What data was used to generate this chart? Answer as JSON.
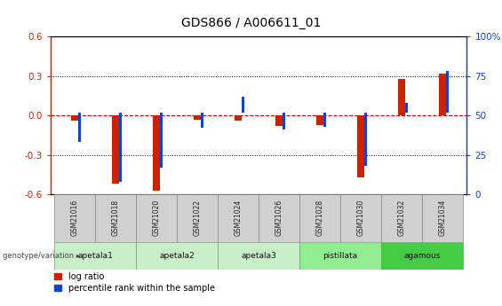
{
  "title": "GDS866 / A006611_01",
  "samples": [
    "GSM21016",
    "GSM21018",
    "GSM21020",
    "GSM21022",
    "GSM21024",
    "GSM21026",
    "GSM21028",
    "GSM21030",
    "GSM21032",
    "GSM21034"
  ],
  "log_ratio": [
    -0.04,
    -0.52,
    -0.57,
    -0.03,
    -0.04,
    -0.08,
    -0.07,
    -0.47,
    0.28,
    0.32
  ],
  "pct_rank_raw": [
    33,
    8,
    17,
    42,
    62,
    41,
    43,
    18,
    58,
    78
  ],
  "groups": [
    {
      "label": "apetala1",
      "span": [
        0,
        2
      ],
      "color": "#c8f0c8"
    },
    {
      "label": "apetala2",
      "span": [
        2,
        4
      ],
      "color": "#c8f0c8"
    },
    {
      "label": "apetala3",
      "span": [
        4,
        6
      ],
      "color": "#c8f0c8"
    },
    {
      "label": "pistillata",
      "span": [
        6,
        8
      ],
      "color": "#90ee90"
    },
    {
      "label": "agamous",
      "span": [
        8,
        10
      ],
      "color": "#44cc44"
    }
  ],
  "ylim": [
    -0.6,
    0.6
  ],
  "yticks_left": [
    -0.6,
    -0.3,
    0.0,
    0.3,
    0.6
  ],
  "yticks_right": [
    0,
    25,
    50,
    75,
    100
  ],
  "bar_color_red": "#cc2200",
  "bar_color_blue": "#1144cc",
  "zero_line_color": "#cc0000",
  "sample_row_color": "#d0d0d0",
  "legend_red_label": "log ratio",
  "legend_blue_label": "percentile rank within the sample",
  "red_bar_width": 0.18,
  "blue_square_size": 0.07
}
